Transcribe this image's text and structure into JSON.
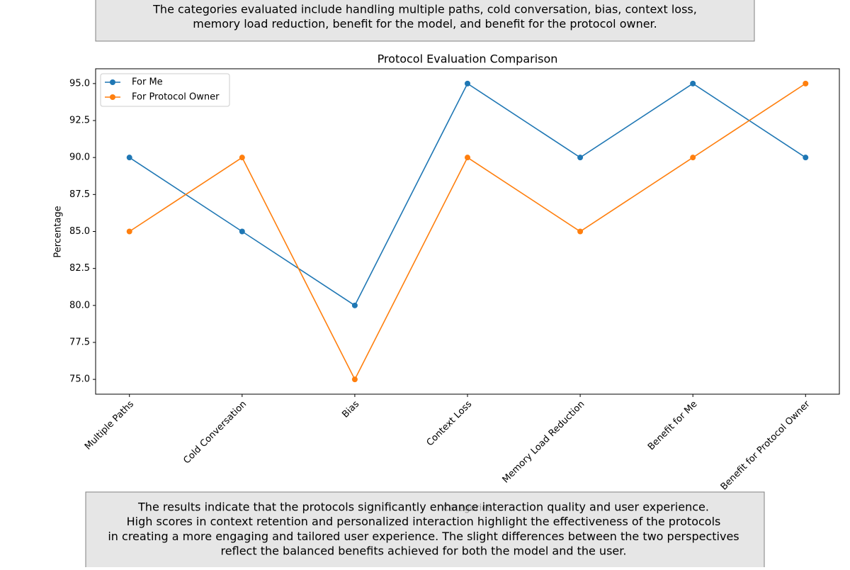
{
  "chart_data": {
    "type": "line",
    "title": "Protocol Evaluation Comparison",
    "x_label": "Categories",
    "y_label": "Percentage",
    "header_text": [
      "The categories evaluated include handling multiple paths, cold conversation, bias, context loss,",
      "memory load reduction, benefit for the model, and benefit for the protocol owner."
    ],
    "footer_text": [
      "The results indicate that the protocols significantly enhance interaction quality and user experience.",
      "High scores in context retention and personalized interaction highlight the effectiveness of the protocols",
      "in creating a more engaging and tailored user experience. The slight differences between the two perspectives",
      "reflect the balanced benefits achieved for both the model and the user."
    ],
    "categories": [
      "Multiple Paths",
      "Cold Conversation",
      "Bias",
      "Context Loss",
      "Memory Load Reduction",
      "Benefit for Me",
      "Benefit for Protocol Owner"
    ],
    "series": [
      {
        "name": "For Me",
        "color": "#1f77b4",
        "values": [
          90,
          85,
          80,
          95,
          90,
          95,
          90
        ]
      },
      {
        "name": "For Protocol Owner",
        "color": "#ff7f0e",
        "values": [
          85,
          90,
          75,
          90,
          85,
          90,
          95
        ]
      }
    ],
    "ylim": [
      74,
      96
    ],
    "yticks": [
      {
        "value": 75,
        "label": "75.0"
      },
      77.5,
      {
        "value": 80,
        "label": "80.0"
      },
      82.5,
      {
        "value": 85,
        "label": "85.0"
      },
      87.5,
      {
        "value": 90,
        "label": "90.0"
      },
      92.5,
      {
        "value": 95,
        "label": "95.0"
      }
    ],
    "legend": "upper left",
    "grid": false
  }
}
